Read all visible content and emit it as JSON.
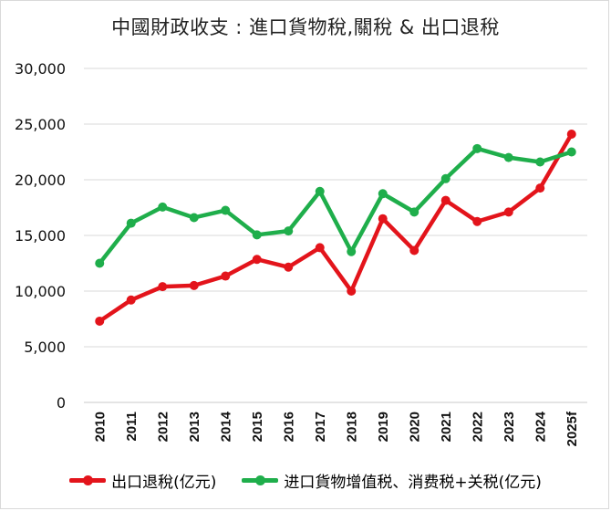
{
  "chart_data": {
    "type": "line",
    "title": "中國財政收支 : 進口貨物稅,關稅 & 出口退稅",
    "xlabel": "",
    "ylabel": "",
    "categories": [
      "2010",
      "2011",
      "2012",
      "2013",
      "2014",
      "2015",
      "2016",
      "2017",
      "2018",
      "2019",
      "2020",
      "2021",
      "2022",
      "2023",
      "2024",
      "2025f"
    ],
    "ylim": [
      0,
      30000
    ],
    "yticks": [
      0,
      5000,
      10000,
      15000,
      20000,
      25000,
      30000
    ],
    "ytick_labels": [
      "0",
      "5,000",
      "10,000",
      "15,000",
      "20,000",
      "25,000",
      "30,000"
    ],
    "grid": true,
    "legend_position": "bottom",
    "series": [
      {
        "name": "出口退稅(亿元)",
        "color": "#e3141b",
        "values": [
          7300,
          9200,
          10400,
          10500,
          11350,
          12850,
          12150,
          13900,
          10000,
          16500,
          13650,
          18150,
          16250,
          17100,
          19250,
          24100
        ]
      },
      {
        "name": "进口貨物增值税、消费税+关税(亿元)",
        "color": "#1fae4b",
        "values": [
          12500,
          16100,
          17550,
          16600,
          17250,
          15050,
          15400,
          18950,
          13550,
          18750,
          17100,
          20100,
          22800,
          22000,
          21600,
          22500
        ]
      }
    ]
  }
}
